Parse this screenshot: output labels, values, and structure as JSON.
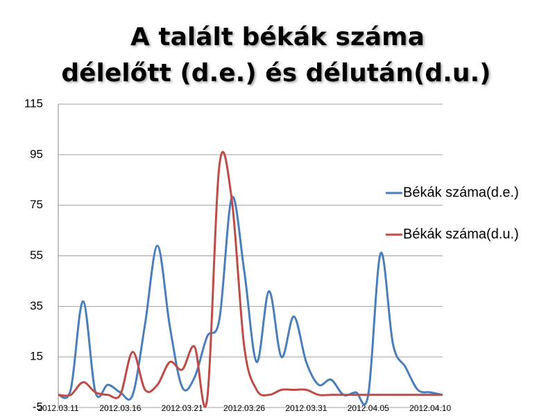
{
  "chart_data": {
    "type": "line",
    "title": [
      "A talált békák száma",
      "délelőtt (d.e.) és délután(d.u.)"
    ],
    "categories": [
      "2012.03.11",
      null,
      null,
      null,
      null,
      "2012.03.16",
      null,
      null,
      null,
      null,
      "2012.03.21",
      null,
      null,
      null,
      null,
      "2012.03.26",
      null,
      null,
      null,
      null,
      "2012.03.31",
      null,
      null,
      null,
      null,
      "2012.04.05",
      null,
      null,
      null,
      null,
      "2012.04.10",
      null
    ],
    "series": [
      {
        "name": "Békák száma(d.e.)",
        "color": "#4a7ebb",
        "values": [
          0,
          2,
          37,
          1,
          4,
          1,
          0,
          28,
          59,
          27,
          3,
          7,
          23,
          30,
          78,
          49,
          13,
          41,
          15,
          31,
          13,
          4,
          6,
          0,
          1,
          0,
          56,
          20,
          11,
          2,
          1,
          0
        ]
      },
      {
        "name": "Békák száma(d.u.)",
        "color": "#be4b48",
        "values": [
          0,
          0,
          5,
          1,
          0,
          0,
          17,
          2,
          4,
          13,
          10,
          19,
          -2,
          91,
          77,
          19,
          2,
          0,
          2,
          2,
          2,
          0,
          0,
          0,
          0,
          0,
          0,
          0,
          0,
          0,
          0,
          0
        ]
      }
    ],
    "ylim": [
      -5,
      115
    ],
    "yticks": [
      -5,
      15,
      35,
      55,
      75,
      95,
      115
    ],
    "grid": true,
    "legend": "right"
  }
}
